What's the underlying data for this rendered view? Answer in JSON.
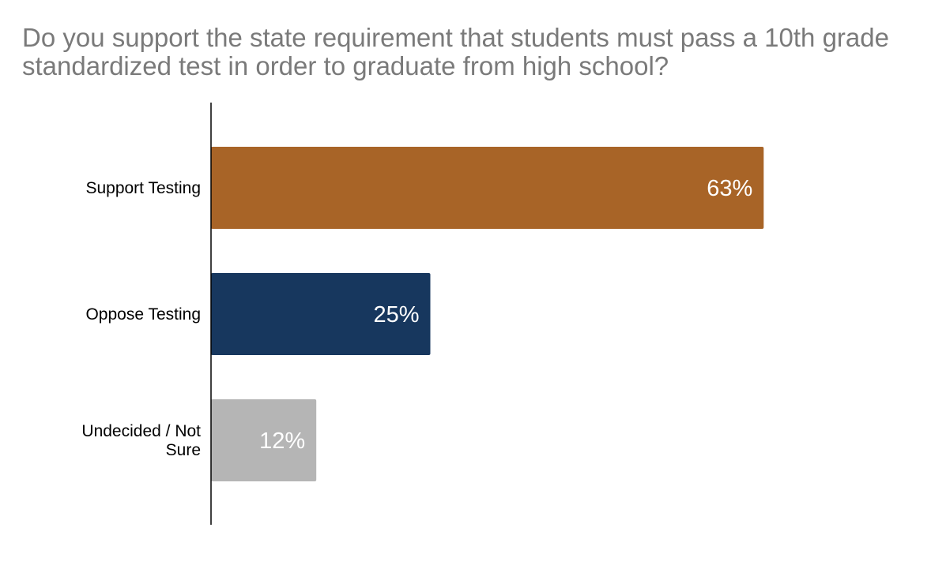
{
  "chart_data": {
    "type": "bar",
    "orientation": "horizontal",
    "title": "Do you support the state requirement that students must pass a 10th grade standardized test in order to graduate from high school?",
    "categories": [
      [
        "Support Testing"
      ],
      [
        "Oppose Testing"
      ],
      [
        "Undecided / Not",
        "Sure"
      ]
    ],
    "values": [
      63,
      25,
      12
    ],
    "value_labels": [
      "63%",
      "25%",
      "12%"
    ],
    "colors": [
      "#a86427",
      "#17375e",
      "#b5b5b5"
    ],
    "xlim": [
      0,
      100
    ],
    "grid": false,
    "legend": "none"
  }
}
